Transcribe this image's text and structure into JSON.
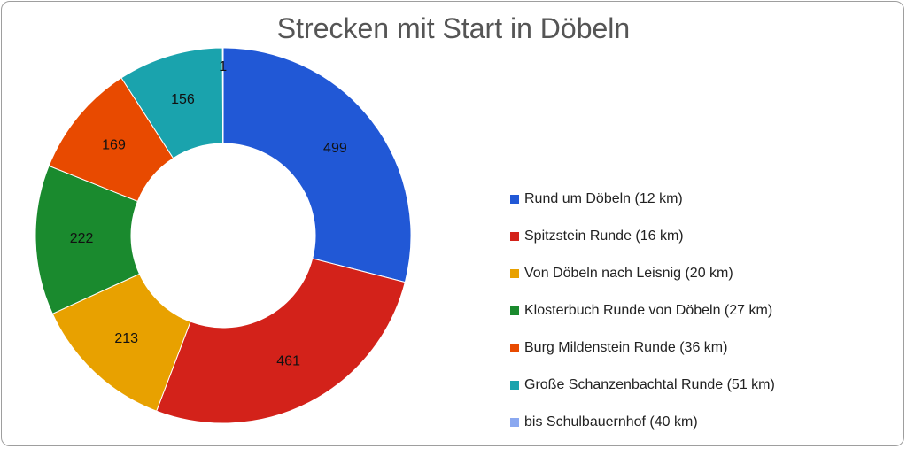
{
  "chart_data": {
    "type": "pie",
    "title": "Strecken mit Start in Döbeln",
    "donut": true,
    "legend_position": "right",
    "slices": [
      {
        "label": "Rund um Döbeln (12 km)",
        "value": 499,
        "color": "#2158d6"
      },
      {
        "label": "Spitzstein Runde (16 km)",
        "value": 461,
        "color": "#d3221a"
      },
      {
        "label": "Von Döbeln nach Leisnig (20 km)",
        "value": 213,
        "color": "#e8a100"
      },
      {
        "label": "Klosterbuch Runde von Döbeln (27 km)",
        "value": 222,
        "color": "#1a8a2e"
      },
      {
        "label": "Burg Mildenstein Runde (36 km)",
        "value": 169,
        "color": "#e84a00"
      },
      {
        "label": "Große Schanzenbachtal Runde (51 km)",
        "value": 156,
        "color": "#1aa3ad"
      },
      {
        "label": "bis Schulbauernhof (40 km)",
        "value": 1,
        "color": "#8aa8f0"
      }
    ]
  }
}
